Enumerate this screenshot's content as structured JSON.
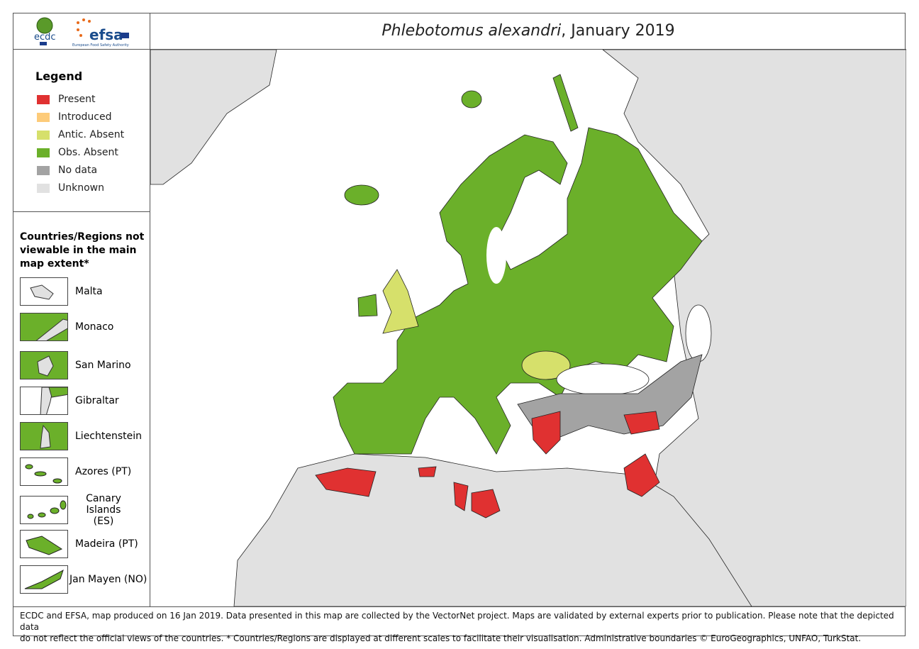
{
  "logos": {
    "ecdc": "ecdc",
    "efsa": "efsa",
    "efsa_sub": "European Food Safety Authority"
  },
  "title": {
    "species": "Phlebotomus alexandri",
    "date": ", January 2019"
  },
  "legend": {
    "heading": "Legend",
    "items": [
      {
        "label": "Present",
        "color": "#e03131"
      },
      {
        "label": "Introduced",
        "color": "#fdcb79"
      },
      {
        "label": "Antic. Absent",
        "color": "#d6e06b"
      },
      {
        "label": "Obs. Absent",
        "color": "#6bb02a"
      },
      {
        "label": "No data",
        "color": "#a3a3a3"
      },
      {
        "label": "Unknown",
        "color": "#e1e1e1"
      }
    ]
  },
  "regions": {
    "heading": "Countries/Regions not viewable in the main map extent*",
    "items": [
      {
        "label": "Malta",
        "status_color": "#e1e1e1"
      },
      {
        "label": "Monaco",
        "status_color": "#6bb02a"
      },
      {
        "label": "San Marino",
        "status_color": "#6bb02a"
      },
      {
        "label": "Gibraltar",
        "status_color": "#e1e1e1"
      },
      {
        "label": "Liechtenstein",
        "status_color": "#6bb02a"
      },
      {
        "label": "Azores (PT)",
        "status_color": "#6bb02a"
      },
      {
        "label": "Canary Islands (ES)",
        "status_color": "#6bb02a"
      },
      {
        "label": "Madeira (PT)",
        "status_color": "#6bb02a"
      },
      {
        "label": "Jan Mayen (NO)",
        "status_color": "#6bb02a"
      }
    ]
  },
  "footer": {
    "line1": "ECDC and EFSA, map produced on 16 Jan 2019. Data presented in this map are collected by the VectorNet project. Maps are validated by external experts prior to publication. Please note that the depicted data",
    "line2": "do not reflect the official views of the countries. * Countries/Regions are displayed at different scales to facilitate their visualisation. Administrative boundaries © EuroGeographics, UNFAO, TurkStat."
  }
}
